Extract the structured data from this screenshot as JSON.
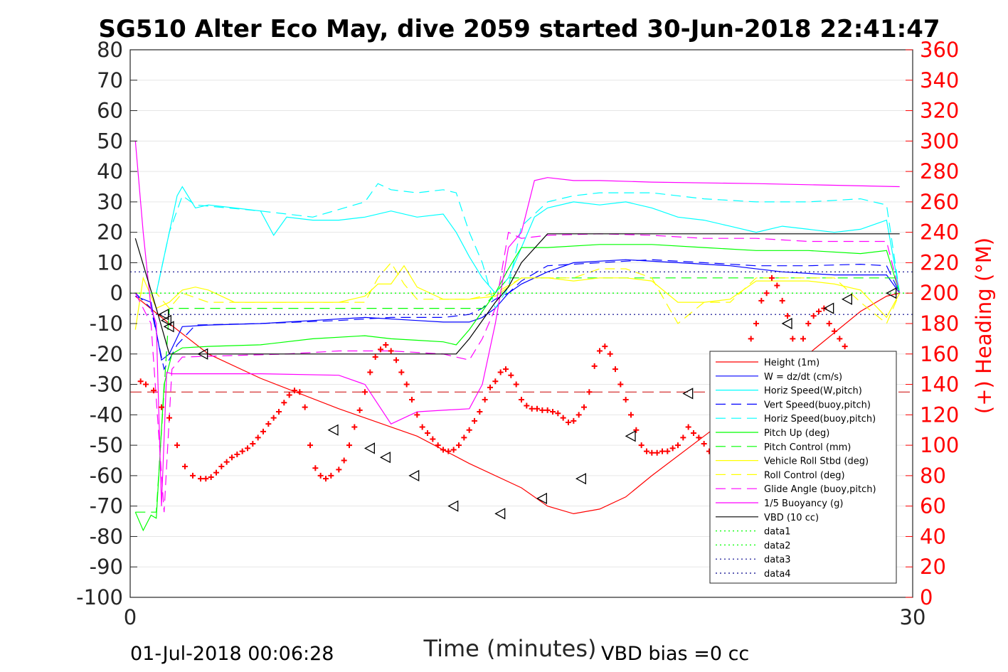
{
  "chart_data": {
    "type": "line",
    "title": "SG510 Alter Eco May, dive 2059 started 30-Jun-2018 22:41:47",
    "xlabel": "Time (minutes)",
    "ylabel_right": "(+) Heading (°M)",
    "footer_left": "01-Jul-2018 00:06:28",
    "footer_right": "VBD bias =0 cc",
    "xlim": [
      0,
      30
    ],
    "ylim_left": [
      -100,
      80
    ],
    "ylim_right": [
      0,
      360
    ],
    "x_ticks": [
      "0",
      "30"
    ],
    "y_ticks_left": [
      "80",
      "70",
      "60",
      "50",
      "40",
      "30",
      "20",
      "10",
      "0",
      "-10",
      "-20",
      "-30",
      "-40",
      "-50",
      "-60",
      "-70",
      "-80",
      "-90",
      "-100"
    ],
    "y_ticks_right": [
      "360",
      "340",
      "320",
      "300",
      "280",
      "260",
      "240",
      "220",
      "200",
      "180",
      "160",
      "140",
      "120",
      "100",
      "80",
      "60",
      "40",
      "20",
      "0"
    ],
    "grid": true,
    "legend_position": "lower-right",
    "series": [
      {
        "name": "Height (1m)",
        "color": "#ff0000",
        "style": "solid",
        "x": [
          0.2,
          1.5,
          3,
          5,
          8,
          11,
          13,
          15,
          16,
          17,
          18,
          19,
          20,
          22,
          24,
          26,
          28,
          29,
          29.5
        ],
        "y": [
          -1,
          -10,
          -20,
          -28,
          -38,
          -47,
          -56,
          -64,
          -70,
          -72.5,
          -71,
          -67,
          -60,
          -47,
          -34,
          -20,
          -6,
          -1,
          0
        ]
      },
      {
        "name": "W = dz/dt (cm/s)",
        "color": "#0000ff",
        "style": "solid",
        "x": [
          0.2,
          0.8,
          1.2,
          1.5,
          2,
          3,
          5,
          7,
          9,
          11,
          12,
          13,
          13.5,
          14,
          14.5,
          15,
          16,
          17,
          19,
          21,
          23,
          25,
          27,
          29,
          29.5
        ],
        "y": [
          -1,
          -3,
          -22,
          -20,
          -11,
          -10.5,
          -10,
          -9,
          -8,
          -9,
          -9.5,
          -9.5,
          -8,
          -5,
          0,
          3,
          7,
          10,
          11,
          10,
          9,
          7,
          6,
          6,
          0
        ]
      },
      {
        "name": "Horiz Speed(W,pitch)",
        "color": "#00ffff",
        "style": "solid",
        "x": [
          0.2,
          1,
          1.5,
          1.8,
          2,
          2.5,
          3,
          4,
          5,
          5.5,
          6,
          7,
          8,
          9,
          10,
          11,
          12,
          12.5,
          13,
          13.5,
          14,
          14.5,
          15,
          15.5,
          16,
          17,
          18,
          19,
          20,
          21,
          22,
          23,
          24,
          25,
          26,
          27,
          28,
          29,
          29.5
        ],
        "y": [
          0,
          0,
          20,
          32,
          35,
          28,
          29,
          28,
          27,
          19,
          25,
          24,
          24,
          25,
          27,
          25,
          26,
          20,
          12,
          5,
          0,
          5,
          15,
          25,
          28,
          30,
          29,
          30,
          28,
          25,
          24,
          22,
          20,
          22,
          21,
          20,
          21,
          24,
          0
        ]
      },
      {
        "name": "Vert Speed(buoy,pitch)",
        "color": "#0000ff",
        "style": "dash",
        "x": [
          0.2,
          0.8,
          1.3,
          1.8,
          2.5,
          5,
          8,
          10,
          12,
          13,
          13.5,
          14,
          14.5,
          15,
          16,
          18,
          20,
          22,
          24,
          26,
          28,
          29,
          29.5
        ],
        "y": [
          0,
          -5,
          -25,
          -17,
          -10.5,
          -10,
          -9,
          -8,
          -8,
          -7,
          -5,
          -2,
          0,
          4,
          9,
          10,
          11,
          10,
          9,
          9,
          9.5,
          9,
          0
        ]
      },
      {
        "name": "Horiz Speed(buoy,pitch)",
        "color": "#00ffff",
        "style": "dash",
        "x": [
          0.2,
          1,
          1.5,
          2,
          2.5,
          5,
          7,
          9,
          9.5,
          10,
          11,
          12,
          12.5,
          13,
          13.5,
          14,
          14.5,
          15,
          16,
          17,
          18,
          20,
          22,
          24,
          26,
          28,
          29,
          29.5
        ],
        "y": [
          0,
          0,
          20,
          32,
          29,
          27,
          25,
          30,
          36,
          34,
          33,
          34,
          33,
          20,
          10,
          -5,
          2,
          22,
          30,
          32,
          33,
          33,
          31,
          30,
          30,
          31,
          29,
          0
        ]
      },
      {
        "name": "Pitch Up (deg)",
        "color": "#00ff00",
        "style": "solid",
        "x": [
          0.2,
          0.5,
          0.8,
          1,
          1.3,
          1.6,
          2,
          3,
          5,
          7,
          9,
          10,
          11,
          12,
          12.5,
          13,
          13.5,
          14,
          14.5,
          15,
          16,
          18,
          20,
          22,
          24,
          26,
          28,
          29,
          29.5
        ],
        "y": [
          -72,
          -78,
          -73,
          -74,
          -30,
          -20,
          -18,
          -17.5,
          -17,
          -15,
          -14,
          -15,
          -15.5,
          -16,
          -17,
          -12,
          -6,
          0,
          8,
          15,
          15,
          16,
          16,
          15,
          14,
          14,
          13,
          14,
          0
        ]
      },
      {
        "name": "Pitch Control (mm)",
        "color": "#00ff00",
        "style": "dash",
        "x": [
          0.2,
          1,
          1.5,
          2,
          13,
          13.5,
          14,
          14.5,
          15,
          29.5
        ],
        "y": [
          -72,
          -72,
          -5,
          -5,
          -5,
          -5,
          0,
          5,
          5,
          5
        ]
      },
      {
        "name": "Vehicle Roll Stbd (deg)",
        "color": "#ffff00",
        "style": "solid",
        "x": [
          0.2,
          0.5,
          1,
          1.5,
          2,
          2.5,
          3,
          4,
          6,
          8,
          9,
          9.5,
          10,
          10.5,
          11,
          12,
          13,
          14,
          15,
          16,
          17,
          18,
          19,
          20,
          21,
          22,
          23,
          24,
          25,
          26,
          27,
          28,
          29,
          29.5
        ],
        "y": [
          -12,
          5,
          -5,
          -3,
          1,
          2,
          1,
          -3,
          -3,
          -3,
          -1,
          3,
          3,
          9,
          2,
          -2,
          -2,
          -1,
          5,
          5,
          4,
          5,
          5,
          4,
          -3,
          -3,
          -2,
          4,
          4,
          4,
          3,
          1,
          -8,
          0
        ]
      },
      {
        "name": "Roll Control (deg)",
        "color": "#ffff00",
        "style": "dash",
        "x": [
          0.2,
          1,
          1.5,
          2,
          3,
          4,
          9,
          9.5,
          10,
          10.5,
          11,
          13,
          14,
          15,
          16,
          17,
          18,
          19,
          20,
          21,
          22,
          23,
          24,
          25,
          26,
          27,
          28,
          29,
          29.5
        ],
        "y": [
          0,
          0,
          -5,
          0,
          -3,
          -3,
          -3,
          5,
          10,
          3,
          -2,
          -2,
          0,
          5,
          5,
          5,
          8,
          8,
          5,
          -10,
          -3,
          -3,
          5,
          5,
          5,
          5,
          -3,
          -10,
          0
        ]
      },
      {
        "name": "Glide Angle (buoy,pitch)",
        "color": "#ff00ff",
        "style": "dash",
        "x": [
          0.2,
          0.8,
          1.3,
          1.6,
          2,
          4,
          6,
          8,
          10,
          12,
          12.5,
          13,
          13.5,
          14,
          14.5,
          15,
          16,
          18,
          20,
          22,
          24,
          26,
          28,
          29,
          29.5
        ],
        "y": [
          0,
          -10,
          -72,
          -25,
          -21,
          -20.5,
          -20,
          -19,
          -19,
          -20,
          -21,
          -22,
          -15,
          -5,
          20,
          18,
          19,
          19.5,
          19,
          18,
          18,
          17,
          17,
          17,
          0
        ]
      },
      {
        "name": "1/5 Buoyancy (g)",
        "color": "#ff00ff",
        "style": "solid",
        "x": [
          0.2,
          0.5,
          0.8,
          1,
          1.2,
          1.4,
          1.6,
          3,
          5,
          8,
          9,
          10,
          11,
          12,
          13,
          13.5,
          14,
          14.5,
          15,
          15.5,
          16,
          17,
          18,
          20,
          24,
          29.5
        ],
        "y": [
          50,
          20,
          -5,
          -10,
          -70,
          -26,
          -26.5,
          -26.5,
          -26.5,
          -27,
          -30,
          -43,
          -39,
          -38.5,
          -38,
          -30,
          -10,
          15,
          20,
          37,
          38,
          37,
          37,
          36.5,
          36,
          35
        ]
      },
      {
        "name": "VBD (10 cc)",
        "color": "#000000",
        "style": "solid",
        "x": [
          0.2,
          1,
          1.5,
          2,
          3,
          10,
          12.5,
          13,
          14,
          14.5,
          15,
          16,
          17,
          20,
          25,
          29.5
        ],
        "y": [
          18,
          -5,
          -20,
          -20,
          -20,
          -20,
          -20,
          -15,
          -3,
          2,
          10,
          19.5,
          19.5,
          19.5,
          19.5,
          19.5
        ]
      },
      {
        "name": "data1",
        "color": "#00ff00",
        "style": "dot",
        "x": [
          0,
          30
        ],
        "y": [
          0,
          0
        ]
      },
      {
        "name": "data2",
        "color": "#00ff00",
        "style": "dot",
        "x": [
          0,
          30
        ],
        "y": [
          0,
          0
        ]
      },
      {
        "name": "data3",
        "color": "#00008b",
        "style": "dot",
        "x": [
          0,
          30
        ],
        "y": [
          7,
          7
        ]
      },
      {
        "name": "data4",
        "color": "#00008b",
        "style": "dot",
        "x": [
          0,
          30
        ],
        "y": [
          -7,
          -7
        ]
      }
    ],
    "reference_lines": [
      {
        "axis": "right",
        "value": 135,
        "color": "#cc0000",
        "style": "dash"
      }
    ],
    "heading_points": {
      "color": "#ff0000",
      "marker": "+",
      "x": [
        0.4,
        0.6,
        0.9,
        1.2,
        1.5,
        1.8,
        2.1,
        2.4,
        2.7,
        2.9,
        3.1,
        3.3,
        3.5,
        3.7,
        3.9,
        4.1,
        4.3,
        4.5,
        4.7,
        4.9,
        5.1,
        5.3,
        5.5,
        5.7,
        5.9,
        6.1,
        6.3,
        6.5,
        6.7,
        6.9,
        7.1,
        7.3,
        7.5,
        7.7,
        8.0,
        8.2,
        8.4,
        8.6,
        8.8,
        9.0,
        9.2,
        9.4,
        9.6,
        9.8,
        10.0,
        10.2,
        10.4,
        10.6,
        10.8,
        11.0,
        11.2,
        11.4,
        11.6,
        11.8,
        12.0,
        12.2,
        12.4,
        12.6,
        12.8,
        13.0,
        13.2,
        13.4,
        13.6,
        13.8,
        14.0,
        14.2,
        14.4,
        14.6,
        14.8,
        15.0,
        15.2,
        15.4,
        15.6,
        15.8,
        16.0,
        16.2,
        16.4,
        16.6,
        16.8,
        17.0,
        17.2,
        17.4,
        17.6,
        17.8,
        18.0,
        18.2,
        18.4,
        18.6,
        18.8,
        19.0,
        19.2,
        19.4,
        19.6,
        19.8,
        20.0,
        20.2,
        20.4,
        20.6,
        20.8,
        21.0,
        21.2,
        21.4,
        21.6,
        21.8,
        22.0,
        22.2,
        22.4,
        22.6,
        22.8,
        23.0,
        23.2,
        23.4,
        23.6,
        23.8,
        24.0,
        24.2,
        24.4,
        24.6,
        24.8,
        25.0,
        25.2,
        25.4,
        25.6,
        25.8,
        26.0,
        26.2,
        26.4,
        26.6,
        26.8,
        27.0,
        27.2,
        27.4,
        27.6,
        27.8,
        28.0,
        28.2
      ],
      "y": [
        142,
        140,
        136,
        125,
        118,
        100,
        86,
        80,
        78,
        78,
        79,
        82,
        86,
        89,
        92,
        94,
        96,
        98,
        101,
        105,
        109,
        114,
        118,
        122,
        128,
        133,
        136,
        135,
        125,
        100,
        85,
        80,
        78,
        80,
        84,
        90,
        100,
        112,
        123,
        135,
        148,
        158,
        163,
        166,
        162,
        156,
        148,
        140,
        130,
        120,
        112,
        108,
        104,
        100,
        97,
        96,
        97,
        100,
        105,
        110,
        116,
        122,
        130,
        138,
        142,
        148,
        150,
        146,
        140,
        130,
        126,
        124,
        124,
        123,
        123,
        122,
        121,
        118,
        115,
        116,
        120,
        125,
        135,
        152,
        162,
        165,
        160,
        150,
        140,
        130,
        120,
        110,
        100,
        96,
        95,
        95,
        96,
        96,
        98,
        100,
        105,
        112,
        108,
        105,
        101,
        96,
        93,
        92,
        94,
        100,
        115,
        120,
        135,
        170,
        180,
        195,
        200,
        210,
        205,
        195,
        185,
        170,
        160,
        170,
        180,
        185,
        188,
        190,
        180,
        175,
        170,
        165,
        160,
        155,
        150,
        145
      ]
    },
    "triangle_markers": [
      {
        "x": 1.3,
        "y": -7
      },
      {
        "x": 1.4,
        "y": -9
      },
      {
        "x": 1.5,
        "y": -11
      },
      {
        "x": 2.8,
        "y": -20
      },
      {
        "x": 7.8,
        "y": -45
      },
      {
        "x": 9.2,
        "y": -51
      },
      {
        "x": 9.8,
        "y": -54
      },
      {
        "x": 10.9,
        "y": -60
      },
      {
        "x": 12.4,
        "y": -70
      },
      {
        "x": 14.2,
        "y": -72.5
      },
      {
        "x": 15.8,
        "y": -67.5
      },
      {
        "x": 17.3,
        "y": -61
      },
      {
        "x": 19.2,
        "y": -47
      },
      {
        "x": 21.4,
        "y": -33
      },
      {
        "x": 25.2,
        "y": -10
      },
      {
        "x": 26.8,
        "y": -5
      },
      {
        "x": 27.5,
        "y": -2
      },
      {
        "x": 29.2,
        "y": 0
      }
    ]
  }
}
